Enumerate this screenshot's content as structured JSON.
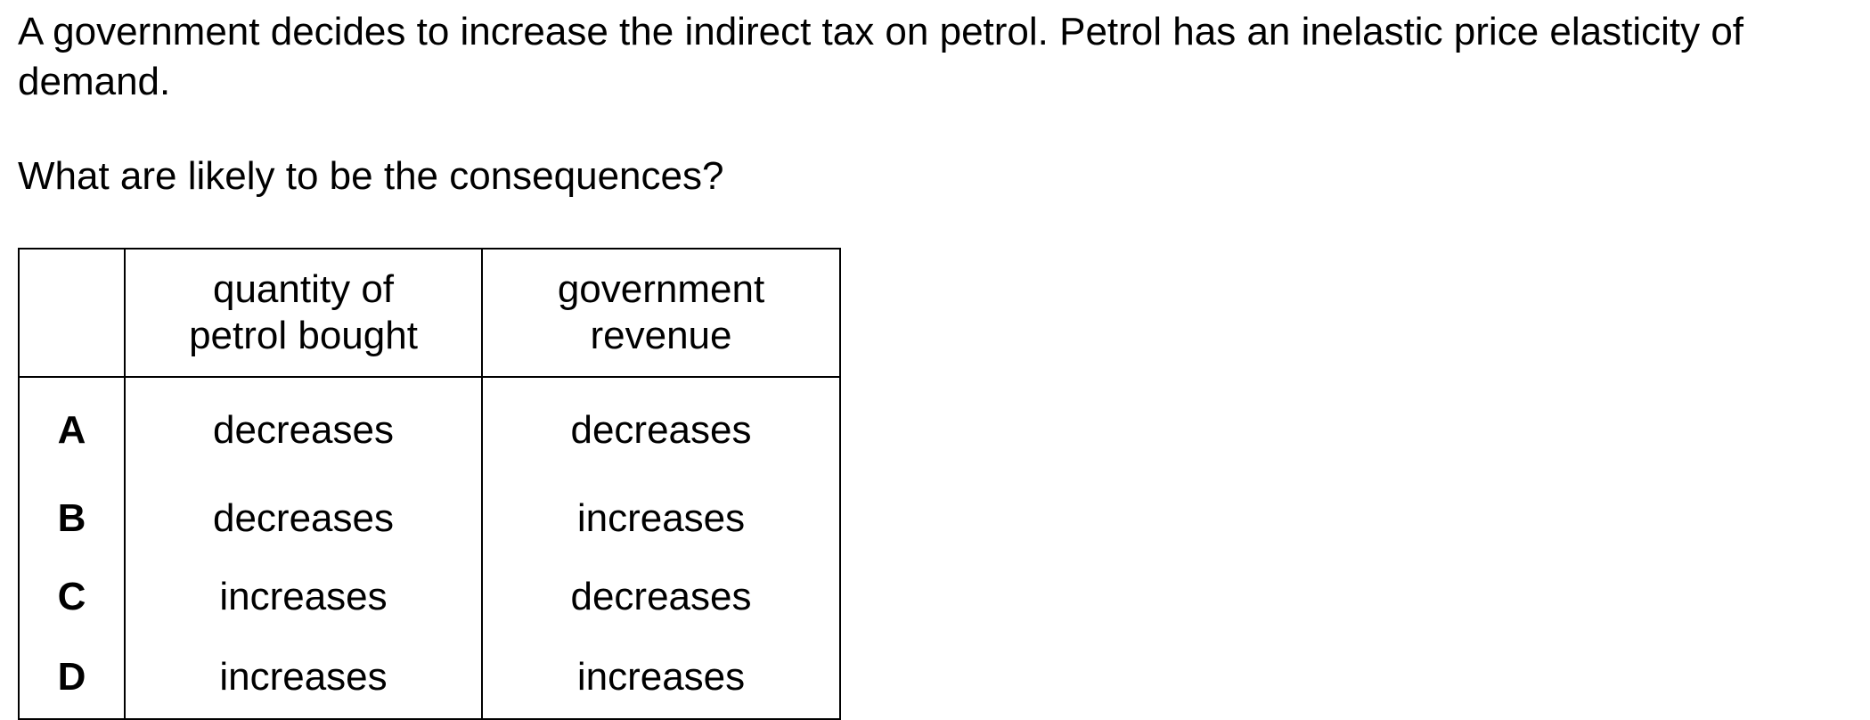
{
  "stem": "A government decides to increase the indirect tax on petrol. Petrol has an inelastic price elasticity of demand.",
  "question": "What are likely to be the consequences?",
  "table": {
    "headers": [
      "",
      "quantity of petrol bought",
      "government revenue"
    ],
    "header_lines": {
      "quantity": [
        "quantity of",
        "petrol bought"
      ],
      "revenue": [
        "government",
        "revenue"
      ]
    },
    "rows": [
      {
        "letter": "A",
        "quantity": "decreases",
        "revenue": "decreases"
      },
      {
        "letter": "B",
        "quantity": "decreases",
        "revenue": "increases"
      },
      {
        "letter": "C",
        "quantity": "increases",
        "revenue": "decreases"
      },
      {
        "letter": "D",
        "quantity": "increases",
        "revenue": "increases"
      }
    ]
  }
}
